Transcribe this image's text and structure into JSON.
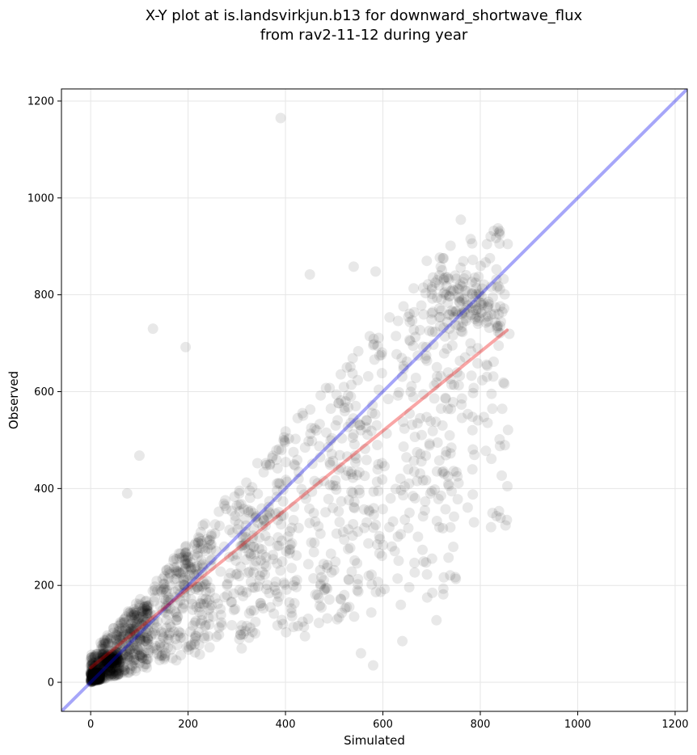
{
  "chart_data": {
    "type": "scatter",
    "title_line1": "X-Y plot at is.landsvirkjun.b13 for downward_shortwave_flux",
    "title_line2": "from rav2-11-12 during year",
    "xlabel": "Simulated",
    "ylabel": "Observed",
    "xlim": [
      -60,
      1225
    ],
    "ylim": [
      -60,
      1225
    ],
    "x_ticks": [
      0,
      200,
      400,
      600,
      800,
      1000,
      1200
    ],
    "y_ticks": [
      0,
      200,
      400,
      600,
      800,
      1000,
      1200
    ],
    "grid": true,
    "point_color": "#000000",
    "point_alpha": 0.09,
    "lines": [
      {
        "kind": "identity",
        "color": "#0000ee",
        "x": [
          -60,
          1225
        ],
        "y": [
          -60,
          1225
        ]
      },
      {
        "kind": "regression",
        "color": "#ee0000",
        "x": [
          0,
          855
        ],
        "y": [
          30,
          727
        ]
      }
    ],
    "clusters": [
      {
        "x": [
          0,
          20
        ],
        "y": [
          0,
          20
        ],
        "n": 260,
        "note": ""
      },
      {
        "x": [
          0,
          60
        ],
        "y": [
          0,
          60
        ],
        "n": 260,
        "note": ""
      },
      {
        "x": [
          20,
          120
        ],
        "y": [
          10,
          160
        ],
        "n": 240,
        "note": ""
      },
      {
        "x": [
          60,
          250
        ],
        "y": [
          20,
          320
        ],
        "n": 260,
        "note": ""
      },
      {
        "x": [
          150,
          420
        ],
        "y": [
          30,
          620
        ],
        "n": 230,
        "note": ""
      },
      {
        "x": [
          300,
          600
        ],
        "y": [
          80,
          720
        ],
        "n": 220,
        "note": ""
      },
      {
        "x": [
          450,
          760
        ],
        "y": [
          80,
          760
        ],
        "n": 200,
        "note": ""
      },
      {
        "x": [
          640,
          860
        ],
        "y": [
          300,
          940
        ],
        "n": 170,
        "note": ""
      },
      {
        "x": [
          700,
          850
        ],
        "y": [
          720,
          840
        ],
        "n": 120,
        "note": ""
      }
    ],
    "outliers": [
      [
        390,
        1165
      ],
      [
        760,
        955
      ],
      [
        780,
        915
      ],
      [
        840,
        925
      ],
      [
        690,
        870
      ],
      [
        540,
        858
      ],
      [
        585,
        848
      ],
      [
        450,
        842
      ],
      [
        128,
        730
      ],
      [
        195,
        692
      ],
      [
        100,
        468
      ],
      [
        75,
        390
      ],
      [
        710,
        128
      ],
      [
        555,
        60
      ],
      [
        580,
        35
      ],
      [
        640,
        85
      ],
      [
        440,
        95
      ],
      [
        310,
        70
      ]
    ]
  }
}
